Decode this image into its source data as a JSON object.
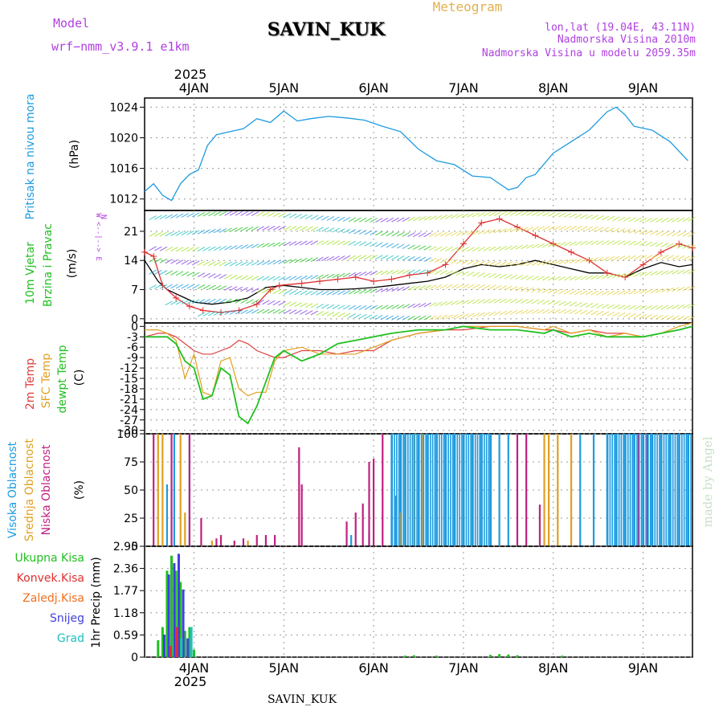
{
  "header": {
    "model_label": "Model",
    "model_name": "wrf−nmm_v3.9.1  e1km",
    "station": "SAVIN_KUK",
    "meteogram": "Meteogram",
    "lonlat": "lon,lat (19.04E, 43.11N)",
    "elev": "Nadmorska Visina 2010m",
    "elev_model": "Nadmorska Visina u modelu 2059.35m"
  },
  "footer": {
    "station": "SAVIN_KUK",
    "watermark": "made by Angel"
  },
  "time_axis": {
    "year_label": "2025",
    "days": [
      "4JAN",
      "5JAN",
      "6JAN",
      "7JAN",
      "8JAN",
      "9JAN"
    ]
  },
  "colors": {
    "pressure": "#1e9be0",
    "wind_speed": "#000000",
    "wind_gust": "#e03030",
    "t2m": "#e04040",
    "sfc": "#e0a020",
    "dewpt": "#20c020",
    "cloud_high": "#1e9be0",
    "cloud_mid": "#e0a020",
    "cloud_low": "#c02080",
    "rain": "#20c020",
    "conv": "#e03030",
    "frozen": "#f07020",
    "snow": "#4040e0",
    "grad": "#20c0c0",
    "wind_label": "#b040e0"
  },
  "chart_data": [
    {
      "type": "line",
      "panel": "pressure",
      "ylabel": [
        "Pritisak na nivou mora",
        "(hPa)"
      ],
      "yticks": [
        1012,
        1016,
        1020,
        1024
      ],
      "ylim": [
        1010.5,
        1025.2
      ],
      "xlim": [
        -0.55,
        5.55
      ],
      "series": [
        {
          "x": [
            -0.55,
            -0.45,
            -0.35,
            -0.25,
            -0.15,
            -0.05,
            0.05,
            0.15,
            0.25,
            0.4,
            0.55,
            0.7,
            0.85,
            1.0,
            1.15,
            1.3,
            1.5,
            1.7,
            1.9,
            2.1,
            2.3,
            2.5,
            2.7,
            2.9,
            3.1,
            3.3,
            3.5,
            3.6,
            3.7,
            3.8,
            4.0,
            4.2,
            4.4,
            4.6,
            4.7,
            4.8,
            4.9,
            5.1,
            5.3,
            5.5
          ],
          "y": [
            1013,
            1014,
            1012.5,
            1011.8,
            1014,
            1015.2,
            1015.8,
            1019,
            1020.4,
            1020.8,
            1021.2,
            1022.5,
            1022,
            1023.5,
            1022.2,
            1022.5,
            1022.8,
            1022.6,
            1022.3,
            1021.5,
            1020.8,
            1018.5,
            1017,
            1016.5,
            1015,
            1014.8,
            1013.2,
            1013.5,
            1014.8,
            1015.2,
            1018,
            1019.5,
            1021,
            1023.4,
            1024,
            1023,
            1021.5,
            1021,
            1019.5,
            1017
          ]
        }
      ]
    },
    {
      "type": "line",
      "panel": "wind",
      "ylabel": [
        "10m Vjetar",
        "Brzina i Pravac",
        "(m/s)"
      ],
      "compass": "N",
      "compass_extra": "W  <--|-->  E",
      "yticks": [
        0,
        7,
        14,
        21
      ],
      "ylim": [
        -1,
        26
      ],
      "series": [
        {
          "name": "speed",
          "x": [
            -0.55,
            -0.4,
            -0.3,
            -0.2,
            -0.1,
            0,
            0.2,
            0.4,
            0.6,
            0.8,
            1.0,
            1.2,
            1.4,
            1.6,
            1.8,
            2.0,
            2.2,
            2.4,
            2.6,
            2.8,
            3.0,
            3.2,
            3.4,
            3.6,
            3.8,
            4.0,
            4.2,
            4.4,
            4.6,
            4.8,
            5.0,
            5.2,
            5.4,
            5.55
          ],
          "y": [
            14,
            9,
            7,
            6,
            5,
            4,
            3.5,
            4,
            5,
            7.5,
            8,
            7.5,
            7,
            7,
            7.2,
            7.5,
            8,
            8.5,
            9,
            10,
            12,
            13,
            12.5,
            13,
            14,
            13,
            12,
            11,
            11,
            10,
            12,
            13.5,
            12.5,
            13
          ]
        },
        {
          "name": "gust",
          "x": [
            -0.55,
            -0.45,
            -0.35,
            -0.2,
            -0.05,
            0.1,
            0.3,
            0.5,
            0.7,
            0.85,
            0.95,
            1.2,
            1.4,
            1.6,
            1.8,
            2.0,
            2.2,
            2.4,
            2.6,
            2.8,
            3.0,
            3.2,
            3.4,
            3.6,
            3.8,
            4.0,
            4.2,
            4.4,
            4.6,
            4.8,
            5.0,
            5.2,
            5.4,
            5.55
          ],
          "y": [
            16,
            15,
            8,
            5,
            3,
            2,
            1.5,
            2,
            3.5,
            7,
            8,
            8.5,
            9,
            9.5,
            10,
            9,
            9.5,
            10.5,
            11,
            13,
            18,
            23,
            24,
            22,
            20,
            18,
            16,
            14,
            11,
            10,
            13,
            16,
            18,
            17
          ]
        }
      ]
    },
    {
      "type": "line",
      "panel": "temperature",
      "ylabel": [
        "2m Temp",
        "SFC Temp",
        "dewpt Temp",
        "(C)"
      ],
      "yticks": [
        0,
        -3,
        -6,
        -9,
        -12,
        -15,
        -18,
        -21,
        -24,
        -27,
        -30
      ],
      "ylim": [
        -31,
        1
      ],
      "series": [
        {
          "name": "2m Temp",
          "x": [
            -0.55,
            -0.4,
            -0.3,
            -0.2,
            -0.1,
            0,
            0.1,
            0.2,
            0.3,
            0.4,
            0.5,
            0.6,
            0.7,
            0.8,
            0.9,
            1.0,
            1.2,
            1.4,
            1.6,
            1.8,
            2.0,
            2.2,
            2.5,
            2.8,
            3.0,
            3.3,
            3.6,
            3.9,
            4.0,
            4.2,
            4.4,
            4.6,
            4.8,
            5.0,
            5.2,
            5.4,
            5.55
          ],
          "y": [
            -3,
            -2,
            -2,
            -3,
            -5,
            -7,
            -8,
            -8,
            -7,
            -6,
            -4,
            -5,
            -7,
            -8,
            -9,
            -9,
            -7,
            -7,
            -8,
            -7,
            -7,
            -4,
            -2,
            -1,
            -1,
            0,
            0,
            -1,
            -1,
            -2,
            -1,
            -2,
            -2,
            -3,
            -2,
            -1,
            0
          ]
        },
        {
          "name": "SFC Temp",
          "x": [
            -0.55,
            -0.4,
            -0.3,
            -0.2,
            -0.1,
            0,
            0.1,
            0.2,
            0.3,
            0.4,
            0.5,
            0.6,
            0.7,
            0.8,
            0.9,
            1.0,
            1.2,
            1.4,
            1.6,
            1.8,
            2.0,
            2.2,
            2.5,
            2.8,
            3.0,
            3.3,
            3.6,
            3.9,
            4.0,
            4.2,
            4.4,
            4.6,
            4.8,
            5.0,
            5.2,
            5.4,
            5.55
          ],
          "y": [
            -1,
            -1,
            -2,
            -4,
            -15,
            -8,
            -19,
            -20,
            -10,
            -9,
            -18,
            -20,
            -19,
            -19,
            -10,
            -7,
            -6,
            -8,
            -8,
            -8,
            -6,
            -4,
            -2,
            -1,
            0,
            0,
            0,
            -1,
            0,
            -2,
            -1,
            -3,
            -2,
            -3,
            -2,
            0,
            1
          ]
        },
        {
          "name": "dewpt Temp",
          "x": [
            -0.55,
            -0.4,
            -0.3,
            -0.2,
            -0.1,
            0,
            0.1,
            0.2,
            0.3,
            0.4,
            0.5,
            0.6,
            0.7,
            0.8,
            0.9,
            1.0,
            1.2,
            1.4,
            1.6,
            1.8,
            2.0,
            2.2,
            2.5,
            2.8,
            3.0,
            3.3,
            3.6,
            3.9,
            4.0,
            4.2,
            4.4,
            4.6,
            4.8,
            5.0,
            5.2,
            5.4,
            5.55
          ],
          "y": [
            -3,
            -3,
            -3,
            -5,
            -10,
            -12,
            -21,
            -20,
            -12,
            -14,
            -26,
            -28,
            -23,
            -16,
            -9,
            -7,
            -10,
            -8,
            -5,
            -4,
            -3,
            -2,
            -1,
            -1,
            0,
            -1,
            -1,
            -2,
            -1,
            -3,
            -2,
            -3,
            -3,
            -3,
            -2,
            -1,
            0
          ]
        }
      ]
    },
    {
      "type": "bar",
      "panel": "clouds",
      "ylabel": [
        "Visoka Oblacnost",
        "Srednja Oblacnost",
        "Niska Oblacnost",
        "(%)"
      ],
      "yticks": [
        0,
        25,
        50,
        75,
        100
      ],
      "ylim": [
        0,
        100
      ],
      "series": [
        {
          "name": "Visoka Oblacnost",
          "x": [
            -0.3,
            -0.22,
            -0.05,
            1.75,
            1.95,
            2.2,
            2.25,
            2.3,
            2.35,
            2.5,
            2.6,
            2.7,
            2.8,
            2.9,
            3.0,
            3.1,
            3.2,
            3.3,
            3.4,
            3.5,
            4.3,
            4.45,
            4.6,
            4.7,
            4.8,
            4.9,
            5.0,
            5.1,
            5.2,
            5.3,
            5.4,
            5.5
          ],
          "y": [
            55,
            100,
            100,
            10,
            12,
            100,
            45,
            100,
            100,
            100,
            100,
            100,
            100,
            100,
            100,
            100,
            100,
            100,
            100,
            100,
            100,
            100,
            100,
            100,
            100,
            100,
            100,
            100,
            100,
            100,
            100,
            100
          ]
        },
        {
          "name": "Srednja Oblacnost",
          "x": [
            -0.4,
            -0.35,
            -0.15,
            -0.1,
            0.2,
            0.6,
            2.3,
            2.45,
            2.55,
            3.9,
            3.95,
            4.05,
            4.2
          ],
          "y": [
            100,
            100,
            100,
            30,
            5,
            5,
            30,
            100,
            100,
            100,
            100,
            100,
            100
          ]
        },
        {
          "name": "Niska Oblacnost",
          "x": [
            -0.45,
            -0.25,
            -0.05,
            0.08,
            0.25,
            0.3,
            0.45,
            0.55,
            0.7,
            0.8,
            0.9,
            1.17,
            1.2,
            1.7,
            1.8,
            1.88,
            1.95,
            2.0,
            2.1,
            3.6,
            3.7,
            3.85,
            4.95,
            5.05
          ],
          "y": [
            100,
            100,
            100,
            25,
            7,
            10,
            5,
            7,
            10,
            10,
            10,
            88,
            55,
            22,
            30,
            38,
            75,
            78,
            100,
            100,
            100,
            37,
            100,
            100
          ]
        }
      ]
    },
    {
      "type": "bar",
      "panel": "precip",
      "ylabel": [
        "1hr Precip (mm)"
      ],
      "legend": [
        "Ukupna Kisa",
        "Konvek.Kisa",
        "Zaledj.Kisa",
        "Snijeg",
        "Grad"
      ],
      "yticks": [
        0,
        0.59,
        1.18,
        1.77,
        2.36,
        2.95
      ],
      "ylim": [
        0,
        2.95
      ],
      "series": [
        {
          "name": "Ukupna Kisa",
          "x": [
            -0.4,
            -0.35,
            -0.3,
            -0.25,
            -0.2,
            -0.15,
            -0.1,
            -0.05,
            0.0
          ],
          "y": [
            0.45,
            0.8,
            2.3,
            2.7,
            2.3,
            2.0,
            0.7,
            0.8,
            0.2
          ]
        },
        {
          "name": "Snijeg",
          "x": [
            -0.33,
            -0.28,
            -0.22,
            -0.17,
            -0.12,
            -0.07
          ],
          "y": [
            0.6,
            2.2,
            2.5,
            2.75,
            1.8,
            0.5
          ]
        },
        {
          "name": "Konvek.Kisa",
          "x": [
            -0.26,
            -0.19
          ],
          "y": [
            0.3,
            0.8
          ]
        },
        {
          "name": "Grad",
          "x": [
            -0.14,
            -0.03
          ],
          "y": [
            0.5,
            0.8
          ]
        },
        {
          "name": "Ukupna Kisa late",
          "x": [
            2.35,
            2.45,
            2.7,
            3.3,
            3.4,
            3.5,
            3.6,
            4.1
          ],
          "y": [
            0.04,
            0.05,
            0.04,
            0.06,
            0.08,
            0.07,
            0.05,
            0.04
          ]
        }
      ]
    }
  ]
}
